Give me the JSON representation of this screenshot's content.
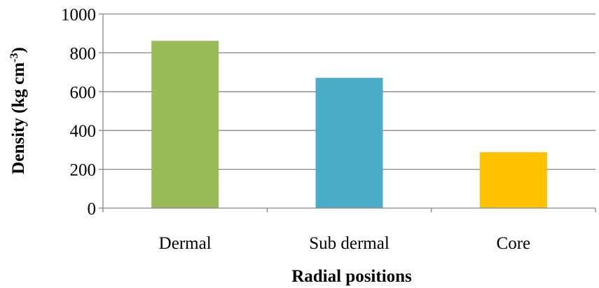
{
  "chart_data": {
    "type": "bar",
    "title": "",
    "xlabel": "Radial positions",
    "ylabel": {
      "main": "Density (kg cm",
      "superscript": "-3",
      "close": ")"
    },
    "categories": [
      "Dermal",
      "Sub dermal",
      "Core"
    ],
    "values": [
      862,
      671,
      288
    ],
    "bar_colors": [
      "#9BBB59",
      "#4BACC6",
      "#FFC000"
    ],
    "ylim": [
      0,
      1000
    ],
    "yticks": [
      0,
      200,
      400,
      600,
      800,
      1000
    ],
    "ytick_labels": [
      "0",
      "200",
      "400",
      "600",
      "800",
      "1000"
    ],
    "grid": true,
    "legend": "none"
  },
  "colors": {
    "gridline": "#878787",
    "axis": "#878787",
    "text": "#000000"
  }
}
